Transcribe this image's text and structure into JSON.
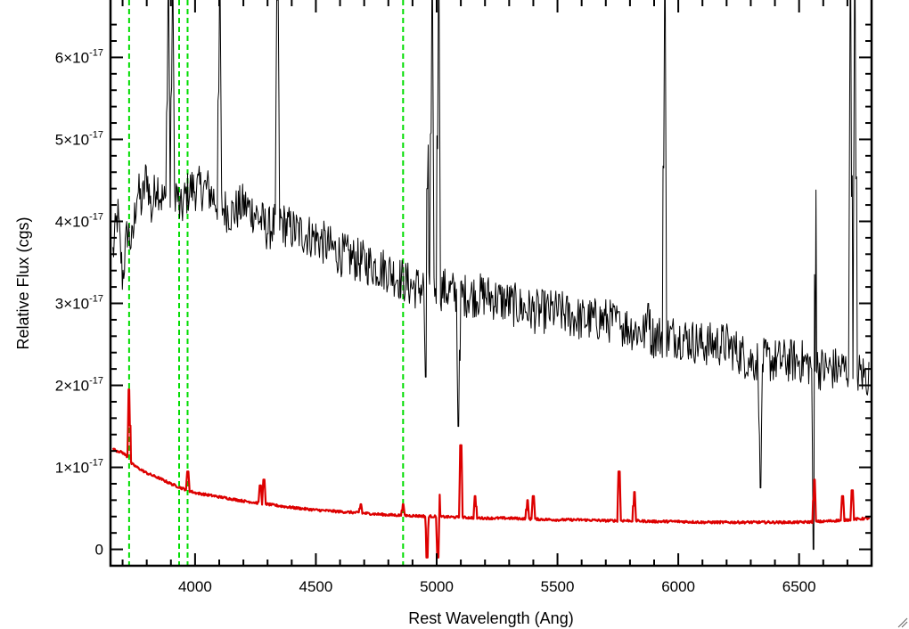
{
  "chart_data": {
    "type": "line",
    "title": "",
    "xlabel": "Rest Wavelength (Ang)",
    "ylabel": "Relative Flux (cgs)",
    "xlim": [
      3650,
      6800
    ],
    "ylim": [
      -0.2,
      6.7
    ],
    "y_unit_exponent": -17,
    "x_ticks": [
      {
        "value": 4000,
        "label": "4000"
      },
      {
        "value": 4500,
        "label": "4500"
      },
      {
        "value": 5000,
        "label": "5000"
      },
      {
        "value": 5500,
        "label": "5500"
      },
      {
        "value": 6000,
        "label": "6000"
      },
      {
        "value": 6500,
        "label": "6500"
      }
    ],
    "y_ticks": [
      {
        "value": 0,
        "mantissa": "0",
        "exponent": ""
      },
      {
        "value": 1,
        "mantissa": "1×10",
        "exponent": "-17"
      },
      {
        "value": 2,
        "mantissa": "2×10",
        "exponent": "-17"
      },
      {
        "value": 3,
        "mantissa": "3×10",
        "exponent": "-17"
      },
      {
        "value": 4,
        "mantissa": "4×10",
        "exponent": "-17"
      },
      {
        "value": 5,
        "mantissa": "5×10",
        "exponent": "-17"
      },
      {
        "value": 6,
        "mantissa": "6×10",
        "exponent": "-17"
      }
    ],
    "vertical_lines": [
      3727,
      3934,
      3969,
      4861
    ],
    "vertical_line_color": "#00dd00",
    "grid": false,
    "series": [
      {
        "color": "#000000",
        "x": [
          3660,
          3680,
          3700,
          3720,
          3740,
          3760,
          3780,
          3800,
          3820,
          3840,
          3860,
          3880,
          3900,
          3920,
          3940,
          3960,
          3980,
          4000,
          4050,
          4100,
          4150,
          4200,
          4250,
          4300,
          4350,
          4400,
          4500,
          4600,
          4700,
          4800,
          4900,
          5000,
          5100,
          5200,
          5300,
          5400,
          5500,
          5600,
          5700,
          5800,
          5900,
          6000,
          6100,
          6200,
          6300,
          6400,
          6500,
          6600,
          6700,
          6790
        ],
        "y": [
          3.6,
          4.1,
          3.3,
          3.9,
          3.7,
          4.4,
          4.2,
          4.6,
          4.1,
          4.5,
          4.3,
          4.2,
          4.3,
          4.4,
          4.1,
          4.3,
          4.4,
          4.4,
          4.4,
          4.2,
          4.1,
          4.2,
          4.1,
          3.9,
          4.0,
          3.9,
          3.8,
          3.6,
          3.5,
          3.4,
          3.2,
          3.2,
          3.1,
          3.1,
          3.0,
          2.9,
          2.9,
          2.8,
          2.8,
          2.7,
          2.6,
          2.6,
          2.5,
          2.5,
          2.3,
          2.3,
          2.3,
          2.2,
          2.2,
          2.1
        ]
      },
      {
        "color": "#dd0000",
        "x": [
          3660,
          3700,
          3720,
          3735,
          3760,
          3800,
          3850,
          3900,
          3950,
          4000,
          4100,
          4200,
          4300,
          4400,
          4500,
          4600,
          4700,
          4800,
          4900,
          5000,
          5100,
          5200,
          5300,
          5400,
          5500,
          5600,
          5700,
          5800,
          5900,
          6000,
          6100,
          6200,
          6300,
          6400,
          6500,
          6600,
          6700,
          6790
        ],
        "y": [
          1.22,
          1.18,
          1.13,
          1.05,
          1.0,
          0.93,
          0.87,
          0.8,
          0.74,
          0.69,
          0.64,
          0.59,
          0.55,
          0.51,
          0.48,
          0.46,
          0.44,
          0.42,
          0.41,
          0.4,
          0.39,
          0.38,
          0.38,
          0.37,
          0.36,
          0.36,
          0.35,
          0.35,
          0.34,
          0.34,
          0.33,
          0.33,
          0.33,
          0.33,
          0.33,
          0.34,
          0.36,
          0.38
        ]
      }
    ],
    "emission_features": [
      {
        "series": 0,
        "x": 3889,
        "y": 6.7
      },
      {
        "series": 0,
        "x": 3907,
        "y": 6.7
      },
      {
        "series": 0,
        "x": 4102,
        "y": 6.7
      },
      {
        "series": 0,
        "x": 4341,
        "y": 6.7
      },
      {
        "series": 0,
        "x": 4960,
        "y": 6.7
      },
      {
        "series": 0,
        "x": 4981,
        "y": 6.7
      },
      {
        "series": 0,
        "x": 5008,
        "y": 6.7
      },
      {
        "series": 0,
        "x": 5754,
        "y": 2.9
      },
      {
        "series": 0,
        "x": 5876,
        "y": 3.0
      },
      {
        "series": 0,
        "x": 5944,
        "y": 6.7
      },
      {
        "series": 0,
        "x": 6563,
        "y": 6.7
      },
      {
        "series": 0,
        "x": 6713,
        "y": 6.7
      },
      {
        "series": 0,
        "x": 6731,
        "y": 6.7
      },
      {
        "series": 1,
        "x": 3727,
        "y": 1.95
      },
      {
        "series": 1,
        "x": 3970,
        "y": 0.95
      },
      {
        "series": 1,
        "x": 4270,
        "y": 0.78
      },
      {
        "series": 1,
        "x": 4285,
        "y": 0.85
      },
      {
        "series": 1,
        "x": 4686,
        "y": 0.55
      },
      {
        "series": 1,
        "x": 4861,
        "y": 0.55
      },
      {
        "series": 1,
        "x": 4960,
        "y": 0.8
      },
      {
        "series": 1,
        "x": 5007,
        "y": 0.95
      },
      {
        "series": 1,
        "x": 5100,
        "y": 1.27
      },
      {
        "series": 1,
        "x": 5159,
        "y": 0.65
      },
      {
        "series": 1,
        "x": 5376,
        "y": 0.6
      },
      {
        "series": 1,
        "x": 5400,
        "y": 0.65
      },
      {
        "series": 1,
        "x": 5755,
        "y": 0.95
      },
      {
        "series": 1,
        "x": 5818,
        "y": 0.7
      },
      {
        "series": 1,
        "x": 6563,
        "y": 0.85
      },
      {
        "series": 1,
        "x": 6680,
        "y": 0.65
      },
      {
        "series": 1,
        "x": 6720,
        "y": 0.72
      }
    ],
    "absorption_features": [
      {
        "series": 0,
        "x": 4955,
        "y": 2.1
      },
      {
        "series": 0,
        "x": 5090,
        "y": 1.5
      },
      {
        "series": 0,
        "x": 6340,
        "y": 0.75
      },
      {
        "series": 0,
        "x": 6560,
        "y": 0.0
      },
      {
        "series": 1,
        "x": 4960,
        "y": -0.1
      },
      {
        "series": 1,
        "x": 5005,
        "y": -0.1
      }
    ]
  }
}
